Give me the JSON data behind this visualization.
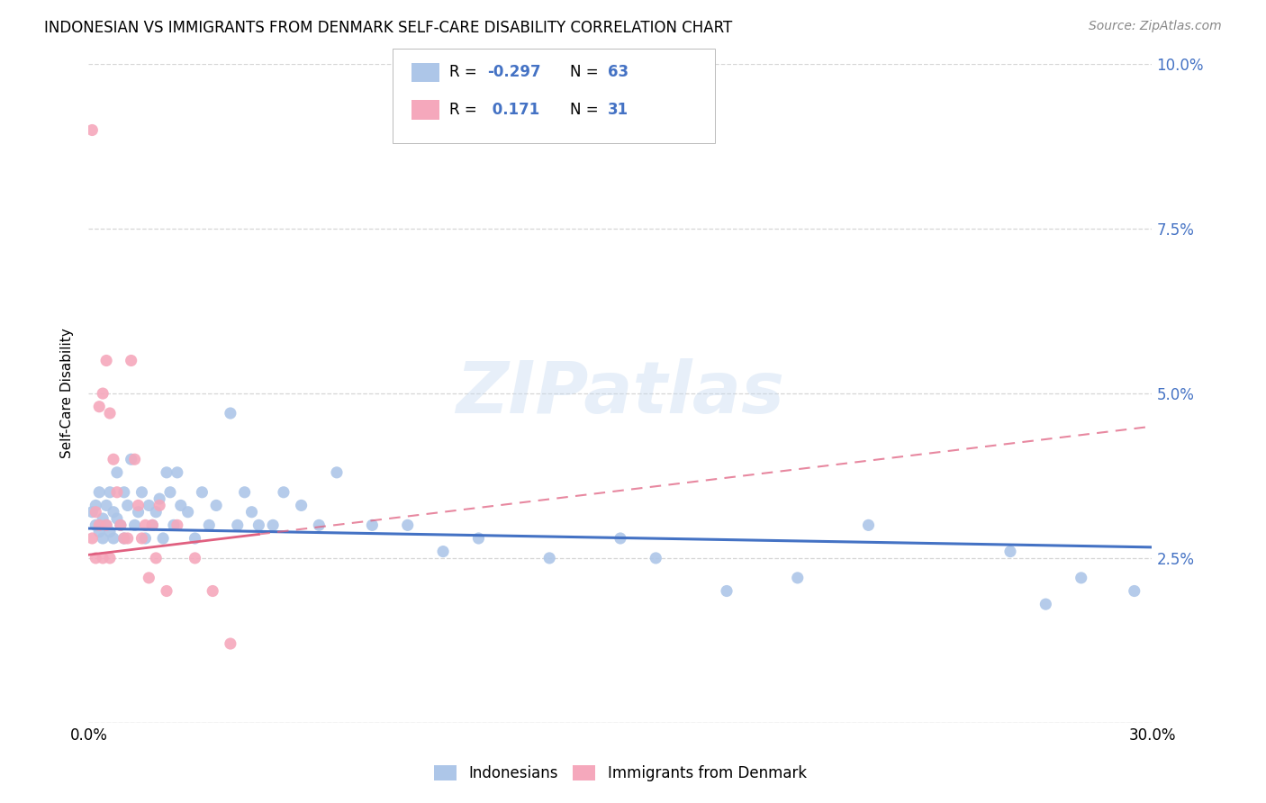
{
  "title": "INDONESIAN VS IMMIGRANTS FROM DENMARK SELF-CARE DISABILITY CORRELATION CHART",
  "source": "Source: ZipAtlas.com",
  "ylabel": "Self-Care Disability",
  "legend_label1": "Indonesians",
  "legend_label2": "Immigrants from Denmark",
  "watermark": "ZIPatlas",
  "xlim": [
    0.0,
    0.3
  ],
  "ylim": [
    0.0,
    0.1
  ],
  "yticks": [
    0.0,
    0.025,
    0.05,
    0.075,
    0.1
  ],
  "ytick_labels": [
    "",
    "2.5%",
    "5.0%",
    "7.5%",
    "10.0%"
  ],
  "xtick_labels": [
    "0.0%",
    "",
    "",
    "",
    "",
    "",
    "",
    "",
    "",
    "",
    "30.0%"
  ],
  "color_blue": "#adc6e8",
  "color_pink": "#f5a8bc",
  "color_blue_dark": "#4472c4",
  "color_pink_dark": "#e06080",
  "trend_blue_slope": -0.0095,
  "trend_blue_intercept": 0.0295,
  "trend_pink_slope": 0.065,
  "trend_pink_intercept": 0.0255,
  "trend_pink_solid_xmax": 0.048,
  "indonesians_x": [
    0.001,
    0.002,
    0.002,
    0.003,
    0.003,
    0.004,
    0.004,
    0.005,
    0.005,
    0.006,
    0.006,
    0.007,
    0.007,
    0.008,
    0.008,
    0.009,
    0.01,
    0.01,
    0.011,
    0.012,
    0.013,
    0.014,
    0.015,
    0.016,
    0.017,
    0.018,
    0.019,
    0.02,
    0.021,
    0.022,
    0.023,
    0.024,
    0.025,
    0.026,
    0.028,
    0.03,
    0.032,
    0.034,
    0.036,
    0.04,
    0.042,
    0.044,
    0.046,
    0.048,
    0.052,
    0.055,
    0.06,
    0.065,
    0.07,
    0.08,
    0.09,
    0.1,
    0.11,
    0.13,
    0.15,
    0.16,
    0.18,
    0.2,
    0.22,
    0.26,
    0.27,
    0.28,
    0.295
  ],
  "indonesians_y": [
    0.032,
    0.03,
    0.033,
    0.029,
    0.035,
    0.031,
    0.028,
    0.033,
    0.03,
    0.035,
    0.029,
    0.032,
    0.028,
    0.038,
    0.031,
    0.03,
    0.035,
    0.028,
    0.033,
    0.04,
    0.03,
    0.032,
    0.035,
    0.028,
    0.033,
    0.03,
    0.032,
    0.034,
    0.028,
    0.038,
    0.035,
    0.03,
    0.038,
    0.033,
    0.032,
    0.028,
    0.035,
    0.03,
    0.033,
    0.047,
    0.03,
    0.035,
    0.032,
    0.03,
    0.03,
    0.035,
    0.033,
    0.03,
    0.038,
    0.03,
    0.03,
    0.026,
    0.028,
    0.025,
    0.028,
    0.025,
    0.02,
    0.022,
    0.03,
    0.026,
    0.018,
    0.022,
    0.02
  ],
  "denmark_x": [
    0.001,
    0.001,
    0.002,
    0.002,
    0.003,
    0.003,
    0.004,
    0.004,
    0.005,
    0.005,
    0.006,
    0.006,
    0.007,
    0.008,
    0.009,
    0.01,
    0.011,
    0.012,
    0.013,
    0.014,
    0.015,
    0.016,
    0.017,
    0.018,
    0.019,
    0.02,
    0.022,
    0.025,
    0.03,
    0.035,
    0.04
  ],
  "denmark_y": [
    0.09,
    0.028,
    0.032,
    0.025,
    0.048,
    0.03,
    0.05,
    0.025,
    0.055,
    0.03,
    0.047,
    0.025,
    0.04,
    0.035,
    0.03,
    0.028,
    0.028,
    0.055,
    0.04,
    0.033,
    0.028,
    0.03,
    0.022,
    0.03,
    0.025,
    0.033,
    0.02,
    0.03,
    0.025,
    0.02,
    0.012
  ]
}
